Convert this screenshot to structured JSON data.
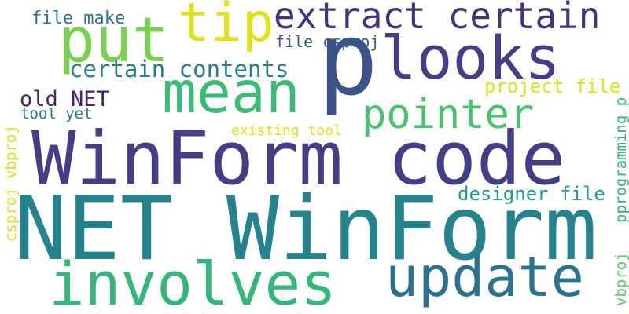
{
  "words": [
    {
      "id": "file-make",
      "text": "file make",
      "color": "#2a788e"
    },
    {
      "id": "tip",
      "text": "tip",
      "color": "#dde318"
    },
    {
      "id": "extract-certain",
      "text": "extract certain",
      "color": "#46337e"
    },
    {
      "id": "put",
      "text": "put",
      "color": "#7ad151"
    },
    {
      "id": "looks",
      "text": "looks",
      "color": "#433e85"
    },
    {
      "id": "p",
      "text": "p",
      "color": "#3b528b"
    },
    {
      "id": "file-csproj",
      "text": "file csproj",
      "color": "#365c8d"
    },
    {
      "id": "certain-contents",
      "text": "certain contents",
      "color": "#277f8e"
    },
    {
      "id": "mean",
      "text": "mean",
      "color": "#3bbb75"
    },
    {
      "id": "project-file",
      "text": "project file",
      "color": "#dde318"
    },
    {
      "id": "old-net",
      "text": "old NET",
      "color": "#482173"
    },
    {
      "id": "pointer",
      "text": "pointer",
      "color": "#4ac16d"
    },
    {
      "id": "tool-yet",
      "text": "tool yet",
      "color": "#2a788e"
    },
    {
      "id": "existing-tool",
      "text": "existing tool",
      "color": "#dde318"
    },
    {
      "id": "winform-code",
      "text": "WinForm code",
      "color": "#433e85"
    },
    {
      "id": "csproj-vbproj",
      "text": "csproj vbproj",
      "color": "#d8e219"
    },
    {
      "id": "designer-file",
      "text": "designer file",
      "color": "#1f9e89"
    },
    {
      "id": "pprogramming-p",
      "text": "pprogramming p",
      "color": "#2fb47c"
    },
    {
      "id": "vbproj",
      "text": "vbproj",
      "color": "#5ec962"
    },
    {
      "id": "net-winform",
      "text": "NET WinForm",
      "color": "#25838e"
    },
    {
      "id": "involves",
      "text": "involves",
      "color": "#35b779"
    },
    {
      "id": "update",
      "text": "update",
      "color": "#2c728e"
    }
  ]
}
